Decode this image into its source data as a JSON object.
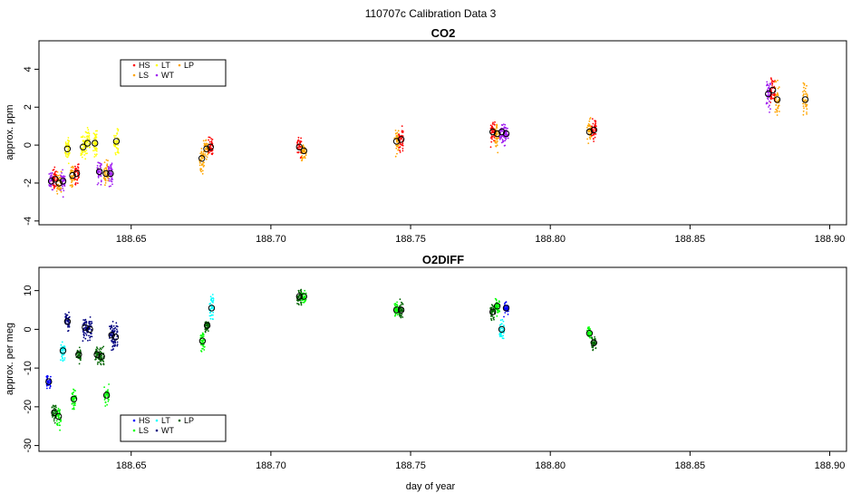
{
  "figure_title": "110707c   Calibration Data 3",
  "chart_data": [
    {
      "type": "scatter",
      "title": "CO2",
      "xlabel": "",
      "ylabel": "approx. ppm",
      "xlim": [
        188.617,
        188.906
      ],
      "ylim": [
        -4.2,
        5.5
      ],
      "xticks": [
        188.65,
        188.7,
        188.75,
        188.8,
        188.85,
        188.9
      ],
      "xtick_labels": [
        "188.65",
        "188.70",
        "188.75",
        "188.80",
        "188.85",
        "188.90"
      ],
      "yticks": [
        -4,
        -2,
        0,
        2,
        4
      ],
      "ytick_labels": [
        "-4",
        "-2",
        "0",
        "2",
        "4"
      ],
      "legend_position": "top-left",
      "legend": [
        {
          "label": "HS",
          "color": "#ff0000"
        },
        {
          "label": "LS",
          "color": "#ffa500"
        },
        {
          "label": "LT",
          "color": "#ffff00"
        },
        {
          "label": "WT",
          "color": "#a020f0"
        },
        {
          "label": "LP",
          "color": "#ffa500"
        }
      ],
      "groups": [
        {
          "x": 188.6214,
          "y": -1.9,
          "color": "#a020f0",
          "spread": 0.7
        },
        {
          "x": 188.6228,
          "y": -1.8,
          "color": "#ff0000",
          "spread": 0.7
        },
        {
          "x": 188.6242,
          "y": -2.0,
          "color": "#ffa500",
          "spread": 0.7
        },
        {
          "x": 188.6256,
          "y": -1.9,
          "color": "#a020f0",
          "spread": 0.7
        },
        {
          "x": 188.6272,
          "y": -0.2,
          "color": "#ffff00",
          "spread": 0.8
        },
        {
          "x": 188.629,
          "y": -1.6,
          "color": "#ffa500",
          "spread": 0.8
        },
        {
          "x": 188.6305,
          "y": -1.5,
          "color": "#ff0000",
          "spread": 0.8
        },
        {
          "x": 188.6328,
          "y": -0.1,
          "color": "#ffff00",
          "spread": 0.9
        },
        {
          "x": 188.6344,
          "y": 0.1,
          "color": "#ffff00",
          "spread": 0.9
        },
        {
          "x": 188.637,
          "y": 0.1,
          "color": "#ffff00",
          "spread": 0.9
        },
        {
          "x": 188.6386,
          "y": -1.4,
          "color": "#a020f0",
          "spread": 0.8
        },
        {
          "x": 188.641,
          "y": -1.5,
          "color": "#ffa500",
          "spread": 0.8
        },
        {
          "x": 188.6426,
          "y": -1.5,
          "color": "#a020f0",
          "spread": 0.9
        },
        {
          "x": 188.6447,
          "y": 0.2,
          "color": "#ffff00",
          "spread": 0.7
        },
        {
          "x": 188.6753,
          "y": -0.7,
          "color": "#ffa500",
          "spread": 0.9
        },
        {
          "x": 188.677,
          "y": -0.2,
          "color": "#ffa500",
          "spread": 0.6
        },
        {
          "x": 188.6784,
          "y": -0.1,
          "color": "#ff0000",
          "spread": 0.7
        },
        {
          "x": 188.7102,
          "y": -0.1,
          "color": "#ff0000",
          "spread": 0.7
        },
        {
          "x": 188.7118,
          "y": -0.3,
          "color": "#ffa500",
          "spread": 0.6
        },
        {
          "x": 188.745,
          "y": 0.2,
          "color": "#ffa500",
          "spread": 0.8
        },
        {
          "x": 188.7466,
          "y": 0.3,
          "color": "#ff0000",
          "spread": 0.8
        },
        {
          "x": 188.7794,
          "y": 0.7,
          "color": "#ff0000",
          "spread": 0.8
        },
        {
          "x": 188.781,
          "y": 0.6,
          "color": "#ffa500",
          "spread": 0.8
        },
        {
          "x": 188.7826,
          "y": 0.7,
          "color": "#a020f0",
          "spread": 0.7
        },
        {
          "x": 188.7842,
          "y": 0.6,
          "color": "#a020f0",
          "spread": 0.6
        },
        {
          "x": 188.814,
          "y": 0.7,
          "color": "#ffa500",
          "spread": 0.8
        },
        {
          "x": 188.8156,
          "y": 0.8,
          "color": "#ff0000",
          "spread": 0.6
        },
        {
          "x": 188.878,
          "y": 2.7,
          "color": "#a020f0",
          "spread": 1.1
        },
        {
          "x": 188.8796,
          "y": 2.9,
          "color": "#ff0000",
          "spread": 1.0
        },
        {
          "x": 188.8812,
          "y": 2.4,
          "color": "#ffa500",
          "spread": 1.1
        },
        {
          "x": 188.8912,
          "y": 2.4,
          "color": "#ffa500",
          "spread": 1.2
        }
      ]
    },
    {
      "type": "scatter",
      "title": "O2DIFF",
      "xlabel": "day of year",
      "ylabel": "approx. per meg",
      "xlim": [
        188.617,
        188.906
      ],
      "ylim": [
        -31.5,
        16
      ],
      "xticks": [
        188.65,
        188.7,
        188.75,
        188.8,
        188.85,
        188.9
      ],
      "xtick_labels": [
        "188.65",
        "188.70",
        "188.75",
        "188.80",
        "188.85",
        "188.90"
      ],
      "yticks": [
        -30,
        -20,
        -10,
        0,
        10
      ],
      "ytick_labels": [
        "-30",
        "-20",
        "-10",
        "0",
        "10"
      ],
      "legend_position": "bottom-left",
      "legend": [
        {
          "label": "HS",
          "color": "#0000ff"
        },
        {
          "label": "LS",
          "color": "#00ff00"
        },
        {
          "label": "LT",
          "color": "#00ffff"
        },
        {
          "label": "WT",
          "color": "#000080"
        },
        {
          "label": "LP",
          "color": "#006400"
        }
      ],
      "groups": [
        {
          "x": 188.6205,
          "y": -13.5,
          "color": "#0000ff",
          "spread": 2.0
        },
        {
          "x": 188.6225,
          "y": -21.5,
          "color": "#006400",
          "spread": 3.0
        },
        {
          "x": 188.624,
          "y": -22.5,
          "color": "#00ff00",
          "spread": 3.5
        },
        {
          "x": 188.6256,
          "y": -5.5,
          "color": "#00ffff",
          "spread": 3.0
        },
        {
          "x": 188.6272,
          "y": 2.0,
          "color": "#000080",
          "spread": 3.0
        },
        {
          "x": 188.6295,
          "y": -18.0,
          "color": "#00ff00",
          "spread": 3.0
        },
        {
          "x": 188.6312,
          "y": -6.5,
          "color": "#006400",
          "spread": 2.5
        },
        {
          "x": 188.6335,
          "y": 0.5,
          "color": "#000080",
          "spread": 3.5
        },
        {
          "x": 188.6352,
          "y": 0.0,
          "color": "#000080",
          "spread": 3.5
        },
        {
          "x": 188.6378,
          "y": -6.5,
          "color": "#006400",
          "spread": 2.5
        },
        {
          "x": 188.6394,
          "y": -7.0,
          "color": "#006400",
          "spread": 2.5
        },
        {
          "x": 188.6412,
          "y": -17.0,
          "color": "#00ff00",
          "spread": 3.0
        },
        {
          "x": 188.643,
          "y": -1.5,
          "color": "#000080",
          "spread": 4.5
        },
        {
          "x": 188.6444,
          "y": -2.0,
          "color": "#000080",
          "spread": 4.5
        },
        {
          "x": 188.6755,
          "y": -3.0,
          "color": "#00ff00",
          "spread": 3.0
        },
        {
          "x": 188.6772,
          "y": 1.0,
          "color": "#006400",
          "spread": 2.0
        },
        {
          "x": 188.6788,
          "y": 5.5,
          "color": "#00ffff",
          "spread": 3.5
        },
        {
          "x": 188.7102,
          "y": 8.5,
          "color": "#006400",
          "spread": 2.5
        },
        {
          "x": 188.7118,
          "y": 8.5,
          "color": "#00ff00",
          "spread": 2.5
        },
        {
          "x": 188.745,
          "y": 5.0,
          "color": "#00ff00",
          "spread": 2.5
        },
        {
          "x": 188.7466,
          "y": 5.0,
          "color": "#006400",
          "spread": 2.5
        },
        {
          "x": 188.7794,
          "y": 4.5,
          "color": "#006400",
          "spread": 2.5
        },
        {
          "x": 188.781,
          "y": 6.0,
          "color": "#00ff00",
          "spread": 2.5
        },
        {
          "x": 188.7826,
          "y": 0.0,
          "color": "#00ffff",
          "spread": 4.0
        },
        {
          "x": 188.7842,
          "y": 5.5,
          "color": "#0000ff",
          "spread": 2.0
        },
        {
          "x": 188.814,
          "y": -1.0,
          "color": "#00ff00",
          "spread": 2.0
        },
        {
          "x": 188.8156,
          "y": -3.5,
          "color": "#006400",
          "spread": 2.0
        }
      ]
    }
  ]
}
